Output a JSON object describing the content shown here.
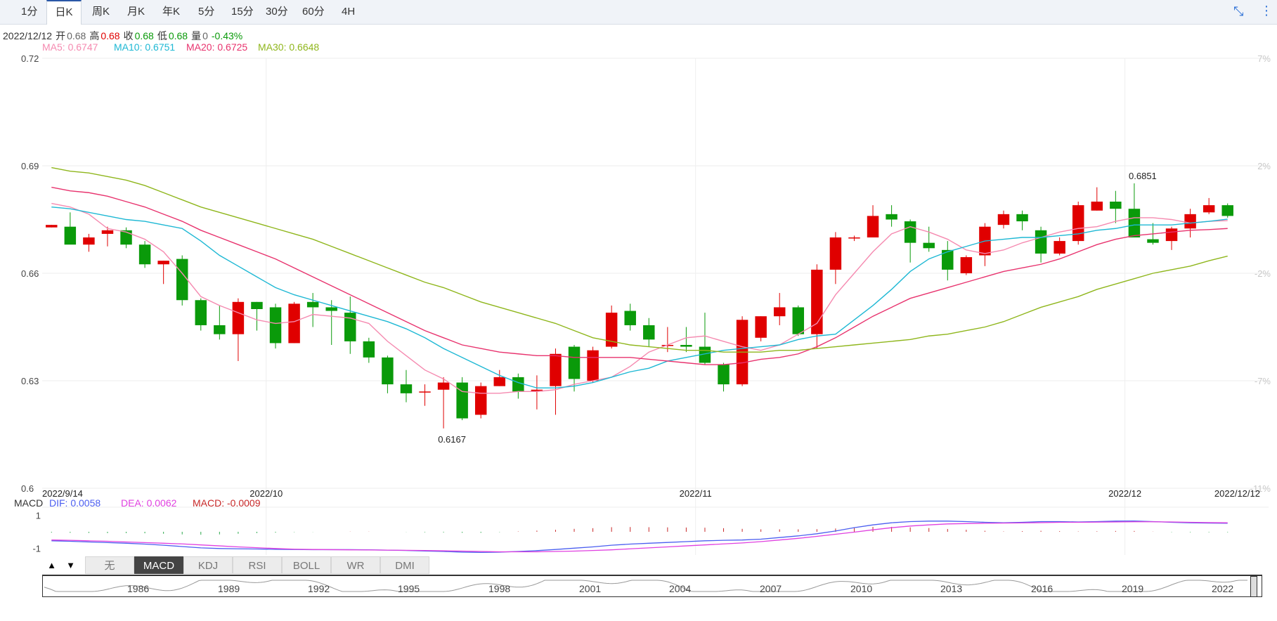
{
  "tabs": [
    {
      "label": "1分",
      "active": false
    },
    {
      "label": "日K",
      "active": true
    },
    {
      "label": "周K",
      "active": false
    },
    {
      "label": "月K",
      "active": false
    },
    {
      "label": "年K",
      "active": false
    },
    {
      "label": "5分",
      "active": false
    },
    {
      "label": "15分",
      "active": false
    },
    {
      "label": "30分",
      "active": false
    },
    {
      "label": "60分",
      "active": false
    },
    {
      "label": "4H",
      "active": false
    }
  ],
  "icons": {
    "collapse": "collapse-icon",
    "more": "more-vertical-icon"
  },
  "info": {
    "date": "2022/12/12",
    "open_label": "开",
    "open": "0.68",
    "high_label": "高",
    "high": "0.68",
    "close_label": "收",
    "close": "0.68",
    "low_label": "低",
    "low": "0.68",
    "volume_label": "量",
    "volume": "0",
    "change": "-0.43%"
  },
  "ma": {
    "ma5": "MA5: 0.6747",
    "ma10": "MA10: 0.6751",
    "ma20": "MA20: 0.6725",
    "ma30": "MA30: 0.6648"
  },
  "colors": {
    "up": "#e00000",
    "down": "#0a9a0a",
    "ma5": "#f58ab0",
    "ma10": "#1eb8d4",
    "ma20": "#e8336e",
    "ma30": "#8fb61c",
    "dif": "#4b5ef0",
    "dea": "#e040e0",
    "macd": "#c82828",
    "tab_accent": "#2a57a7"
  },
  "chart_data": {
    "type": "candlestick",
    "y_ticks": [
      "0.72",
      "0.69",
      "0.66",
      "0.63",
      "0.6"
    ],
    "ylim": [
      0.6,
      0.72
    ],
    "pct_ticks": [
      "7%",
      "2%",
      "-2%",
      "-7%",
      "-11%"
    ],
    "x_labels": [
      "2022/9/14",
      "2022/10",
      "2022/11",
      "2022/12",
      "2022/12/12"
    ],
    "max_label": "0.6851",
    "min_label": "0.6167",
    "candles": [
      {
        "o": 0.6728,
        "h": 0.6735,
        "l": 0.6728,
        "c": 0.6735
      },
      {
        "o": 0.673,
        "h": 0.677,
        "l": 0.669,
        "c": 0.668
      },
      {
        "o": 0.668,
        "h": 0.671,
        "l": 0.666,
        "c": 0.67
      },
      {
        "o": 0.671,
        "h": 0.673,
        "l": 0.6675,
        "c": 0.672
      },
      {
        "o": 0.672,
        "h": 0.6728,
        "l": 0.667,
        "c": 0.668
      },
      {
        "o": 0.668,
        "h": 0.669,
        "l": 0.6615,
        "c": 0.6625
      },
      {
        "o": 0.6625,
        "h": 0.6635,
        "l": 0.657,
        "c": 0.6635
      },
      {
        "o": 0.664,
        "h": 0.665,
        "l": 0.651,
        "c": 0.6525
      },
      {
        "o": 0.6525,
        "h": 0.653,
        "l": 0.644,
        "c": 0.6455
      },
      {
        "o": 0.6455,
        "h": 0.651,
        "l": 0.6415,
        "c": 0.643
      },
      {
        "o": 0.643,
        "h": 0.653,
        "l": 0.6355,
        "c": 0.652
      },
      {
        "o": 0.652,
        "h": 0.652,
        "l": 0.644,
        "c": 0.65
      },
      {
        "o": 0.6505,
        "h": 0.6515,
        "l": 0.639,
        "c": 0.6405
      },
      {
        "o": 0.6405,
        "h": 0.652,
        "l": 0.6405,
        "c": 0.6515
      },
      {
        "o": 0.652,
        "h": 0.6545,
        "l": 0.645,
        "c": 0.6505
      },
      {
        "o": 0.6505,
        "h": 0.6525,
        "l": 0.64,
        "c": 0.6495
      },
      {
        "o": 0.649,
        "h": 0.6535,
        "l": 0.6375,
        "c": 0.641
      },
      {
        "o": 0.641,
        "h": 0.642,
        "l": 0.635,
        "c": 0.6365
      },
      {
        "o": 0.6365,
        "h": 0.637,
        "l": 0.6265,
        "c": 0.629
      },
      {
        "o": 0.629,
        "h": 0.633,
        "l": 0.624,
        "c": 0.6265
      },
      {
        "o": 0.627,
        "h": 0.629,
        "l": 0.623,
        "c": 0.627
      },
      {
        "o": 0.6275,
        "h": 0.631,
        "l": 0.6167,
        "c": 0.6295
      },
      {
        "o": 0.6295,
        "h": 0.631,
        "l": 0.619,
        "c": 0.6195
      },
      {
        "o": 0.6205,
        "h": 0.6295,
        "l": 0.6195,
        "c": 0.6285
      },
      {
        "o": 0.6285,
        "h": 0.633,
        "l": 0.6285,
        "c": 0.631
      },
      {
        "o": 0.631,
        "h": 0.632,
        "l": 0.625,
        "c": 0.627
      },
      {
        "o": 0.627,
        "h": 0.6315,
        "l": 0.622,
        "c": 0.6275
      },
      {
        "o": 0.6285,
        "h": 0.639,
        "l": 0.6205,
        "c": 0.6375
      },
      {
        "o": 0.6395,
        "h": 0.64,
        "l": 0.627,
        "c": 0.6305
      },
      {
        "o": 0.63,
        "h": 0.6395,
        "l": 0.6295,
        "c": 0.6385
      },
      {
        "o": 0.6395,
        "h": 0.651,
        "l": 0.639,
        "c": 0.649
      },
      {
        "o": 0.6495,
        "h": 0.6515,
        "l": 0.644,
        "c": 0.6455
      },
      {
        "o": 0.6455,
        "h": 0.6475,
        "l": 0.6395,
        "c": 0.6415
      },
      {
        "o": 0.64,
        "h": 0.645,
        "l": 0.638,
        "c": 0.64
      },
      {
        "o": 0.64,
        "h": 0.645,
        "l": 0.638,
        "c": 0.6395
      },
      {
        "o": 0.6395,
        "h": 0.649,
        "l": 0.6345,
        "c": 0.635
      },
      {
        "o": 0.6345,
        "h": 0.635,
        "l": 0.627,
        "c": 0.629
      },
      {
        "o": 0.629,
        "h": 0.648,
        "l": 0.6285,
        "c": 0.647
      },
      {
        "o": 0.642,
        "h": 0.648,
        "l": 0.641,
        "c": 0.648
      },
      {
        "o": 0.648,
        "h": 0.6545,
        "l": 0.6455,
        "c": 0.6505
      },
      {
        "o": 0.6505,
        "h": 0.651,
        "l": 0.6425,
        "c": 0.643
      },
      {
        "o": 0.643,
        "h": 0.6625,
        "l": 0.639,
        "c": 0.661
      },
      {
        "o": 0.661,
        "h": 0.6715,
        "l": 0.657,
        "c": 0.67
      },
      {
        "o": 0.6698,
        "h": 0.6705,
        "l": 0.669,
        "c": 0.67
      },
      {
        "o": 0.67,
        "h": 0.679,
        "l": 0.67,
        "c": 0.676
      },
      {
        "o": 0.6765,
        "h": 0.679,
        "l": 0.673,
        "c": 0.675
      },
      {
        "o": 0.6745,
        "h": 0.675,
        "l": 0.663,
        "c": 0.6685
      },
      {
        "o": 0.6685,
        "h": 0.673,
        "l": 0.666,
        "c": 0.667
      },
      {
        "o": 0.6665,
        "h": 0.669,
        "l": 0.658,
        "c": 0.661
      },
      {
        "o": 0.66,
        "h": 0.665,
        "l": 0.6595,
        "c": 0.6645
      },
      {
        "o": 0.665,
        "h": 0.674,
        "l": 0.662,
        "c": 0.673
      },
      {
        "o": 0.6735,
        "h": 0.6775,
        "l": 0.6725,
        "c": 0.6765
      },
      {
        "o": 0.6765,
        "h": 0.6775,
        "l": 0.672,
        "c": 0.6745
      },
      {
        "o": 0.672,
        "h": 0.673,
        "l": 0.663,
        "c": 0.6655
      },
      {
        "o": 0.6655,
        "h": 0.67,
        "l": 0.665,
        "c": 0.669
      },
      {
        "o": 0.669,
        "h": 0.68,
        "l": 0.668,
        "c": 0.679
      },
      {
        "o": 0.6775,
        "h": 0.684,
        "l": 0.6775,
        "c": 0.68
      },
      {
        "o": 0.68,
        "h": 0.683,
        "l": 0.674,
        "c": 0.678
      },
      {
        "o": 0.678,
        "h": 0.6851,
        "l": 0.67,
        "c": 0.67
      },
      {
        "o": 0.6695,
        "h": 0.674,
        "l": 0.668,
        "c": 0.6685
      },
      {
        "o": 0.669,
        "h": 0.673,
        "l": 0.6665,
        "c": 0.6725
      },
      {
        "o": 0.6725,
        "h": 0.678,
        "l": 0.67,
        "c": 0.6765
      },
      {
        "o": 0.677,
        "h": 0.681,
        "l": 0.6765,
        "c": 0.679
      },
      {
        "o": 0.679,
        "h": 0.6795,
        "l": 0.6755,
        "c": 0.676
      }
    ],
    "ma_series": [
      {
        "name": "MA5",
        "values": [
          0.6795,
          0.6785,
          0.6765,
          0.6725,
          0.6715,
          0.6695,
          0.666,
          0.66,
          0.6535,
          0.651,
          0.649,
          0.647,
          0.646,
          0.6465,
          0.6485,
          0.648,
          0.6475,
          0.646,
          0.641,
          0.637,
          0.633,
          0.6305,
          0.627,
          0.6265,
          0.6265,
          0.627,
          0.627,
          0.6275,
          0.629,
          0.63,
          0.631,
          0.634,
          0.638,
          0.64,
          0.642,
          0.6425,
          0.641,
          0.6395,
          0.6385,
          0.64,
          0.643,
          0.646,
          0.654,
          0.66,
          0.666,
          0.671,
          0.673,
          0.6715,
          0.6695,
          0.6665,
          0.6655,
          0.6665,
          0.6685,
          0.67,
          0.6715,
          0.6725,
          0.673,
          0.6745,
          0.6755,
          0.6755,
          0.675,
          0.674,
          0.6745,
          0.6747
        ]
      },
      {
        "name": "MA10",
        "values": [
          0.6785,
          0.678,
          0.677,
          0.676,
          0.675,
          0.6745,
          0.6735,
          0.6725,
          0.669,
          0.665,
          0.662,
          0.659,
          0.656,
          0.654,
          0.6525,
          0.651,
          0.6495,
          0.648,
          0.6465,
          0.6445,
          0.642,
          0.639,
          0.6365,
          0.634,
          0.6315,
          0.6295,
          0.628,
          0.628,
          0.6285,
          0.6295,
          0.631,
          0.6325,
          0.6335,
          0.6355,
          0.6365,
          0.6375,
          0.6385,
          0.639,
          0.6395,
          0.64,
          0.6415,
          0.6425,
          0.643,
          0.647,
          0.651,
          0.6555,
          0.6605,
          0.664,
          0.666,
          0.6675,
          0.669,
          0.6695,
          0.67,
          0.67,
          0.6705,
          0.671,
          0.672,
          0.6725,
          0.6735,
          0.6735,
          0.6735,
          0.674,
          0.6745,
          0.6751
        ]
      },
      {
        "name": "MA20",
        "values": [
          0.684,
          0.683,
          0.6825,
          0.6815,
          0.68,
          0.6785,
          0.6765,
          0.6745,
          0.672,
          0.67,
          0.668,
          0.666,
          0.664,
          0.6615,
          0.659,
          0.6565,
          0.654,
          0.6515,
          0.649,
          0.6465,
          0.644,
          0.642,
          0.64,
          0.639,
          0.638,
          0.6375,
          0.637,
          0.637,
          0.6365,
          0.6365,
          0.6365,
          0.6365,
          0.636,
          0.6355,
          0.635,
          0.6345,
          0.6345,
          0.635,
          0.636,
          0.6365,
          0.6375,
          0.6395,
          0.642,
          0.645,
          0.648,
          0.6505,
          0.653,
          0.6545,
          0.656,
          0.6575,
          0.659,
          0.6605,
          0.6615,
          0.6625,
          0.664,
          0.666,
          0.668,
          0.6695,
          0.6705,
          0.671,
          0.6715,
          0.672,
          0.6722,
          0.6725
        ]
      },
      {
        "name": "MA30",
        "values": [
          0.6895,
          0.6885,
          0.688,
          0.687,
          0.686,
          0.6845,
          0.6825,
          0.6805,
          0.6785,
          0.677,
          0.6755,
          0.674,
          0.6725,
          0.671,
          0.6695,
          0.6675,
          0.6655,
          0.6635,
          0.6615,
          0.6595,
          0.6575,
          0.656,
          0.654,
          0.652,
          0.6505,
          0.649,
          0.6475,
          0.646,
          0.644,
          0.642,
          0.641,
          0.64,
          0.6395,
          0.639,
          0.6385,
          0.6385,
          0.638,
          0.638,
          0.638,
          0.6385,
          0.6385,
          0.639,
          0.6395,
          0.64,
          0.6405,
          0.641,
          0.6415,
          0.6425,
          0.643,
          0.644,
          0.645,
          0.6465,
          0.6485,
          0.6505,
          0.652,
          0.6535,
          0.6555,
          0.657,
          0.6585,
          0.66,
          0.661,
          0.662,
          0.6635,
          0.6648
        ]
      }
    ],
    "macd": {
      "label": "MACD",
      "dif": "DIF: 0.0058",
      "dea": "DEA: 0.0062",
      "macd": "MACD: -0.0009",
      "y_ticks": [
        "1",
        "-1"
      ],
      "ylim": [
        -1.5,
        1.5
      ],
      "dif_values": [
        -0.55,
        -0.58,
        -0.62,
        -0.66,
        -0.7,
        -0.75,
        -0.82,
        -0.9,
        -0.98,
        -1.02,
        -1.04,
        -1.05,
        -1.07,
        -1.08,
        -1.09,
        -1.09,
        -1.09,
        -1.1,
        -1.12,
        -1.14,
        -1.17,
        -1.2,
        -1.24,
        -1.26,
        -1.24,
        -1.2,
        -1.15,
        -1.08,
        -1.0,
        -0.92,
        -0.82,
        -0.75,
        -0.7,
        -0.65,
        -0.6,
        -0.55,
        -0.52,
        -0.5,
        -0.45,
        -0.35,
        -0.25,
        -0.12,
        0.05,
        0.25,
        0.42,
        0.55,
        0.62,
        0.65,
        0.65,
        0.62,
        0.58,
        0.55,
        0.58,
        0.62,
        0.62,
        0.6,
        0.62,
        0.65,
        0.66,
        0.62,
        0.58,
        0.55,
        0.53,
        0.52
      ],
      "dea_values": [
        -0.5,
        -0.52,
        -0.55,
        -0.58,
        -0.62,
        -0.66,
        -0.7,
        -0.74,
        -0.8,
        -0.86,
        -0.92,
        -0.97,
        -1.02,
        -1.06,
        -1.08,
        -1.09,
        -1.1,
        -1.11,
        -1.12,
        -1.13,
        -1.14,
        -1.16,
        -1.18,
        -1.2,
        -1.22,
        -1.22,
        -1.22,
        -1.2,
        -1.18,
        -1.14,
        -1.1,
        -1.04,
        -0.98,
        -0.92,
        -0.86,
        -0.8,
        -0.74,
        -0.68,
        -0.6,
        -0.5,
        -0.4,
        -0.28,
        -0.15,
        -0.02,
        0.12,
        0.25,
        0.35,
        0.42,
        0.48,
        0.5,
        0.52,
        0.53,
        0.54,
        0.56,
        0.58,
        0.58,
        0.59,
        0.6,
        0.61,
        0.61,
        0.6,
        0.58,
        0.56,
        0.55
      ],
      "hist_values": [
        -0.05,
        -0.06,
        -0.07,
        -0.08,
        -0.08,
        -0.09,
        -0.12,
        -0.16,
        -0.18,
        -0.16,
        -0.12,
        -0.08,
        -0.05,
        -0.02,
        -0.01,
        0,
        0.01,
        0.01,
        0,
        -0.01,
        -0.03,
        -0.04,
        -0.06,
        -0.06,
        -0.02,
        0.02,
        0.07,
        0.12,
        0.18,
        0.22,
        0.28,
        0.29,
        0.28,
        0.27,
        0.26,
        0.25,
        0.22,
        0.18,
        0.15,
        0.15,
        0.15,
        0.16,
        0.2,
        0.27,
        0.3,
        0.3,
        0.27,
        0.23,
        0.17,
        0.12,
        0.06,
        0.02,
        0.04,
        0.06,
        0.04,
        0.02,
        0.03,
        0.05,
        0.05,
        0.01,
        -0.02,
        -0.03,
        -0.03,
        -0.03
      ]
    }
  },
  "indicators": {
    "up": "▲",
    "down": "▼",
    "tabs": [
      {
        "label": "无",
        "active": false
      },
      {
        "label": "MACD",
        "active": true
      },
      {
        "label": "KDJ",
        "active": false
      },
      {
        "label": "RSI",
        "active": false
      },
      {
        "label": "BOLL",
        "active": false
      },
      {
        "label": "WR",
        "active": false
      },
      {
        "label": "DMI",
        "active": false
      }
    ]
  },
  "navigator": {
    "years": [
      "1986",
      "1989",
      "1992",
      "1995",
      "1998",
      "2001",
      "2004",
      "2007",
      "2010",
      "2013",
      "2016",
      "2019",
      "2022"
    ]
  }
}
